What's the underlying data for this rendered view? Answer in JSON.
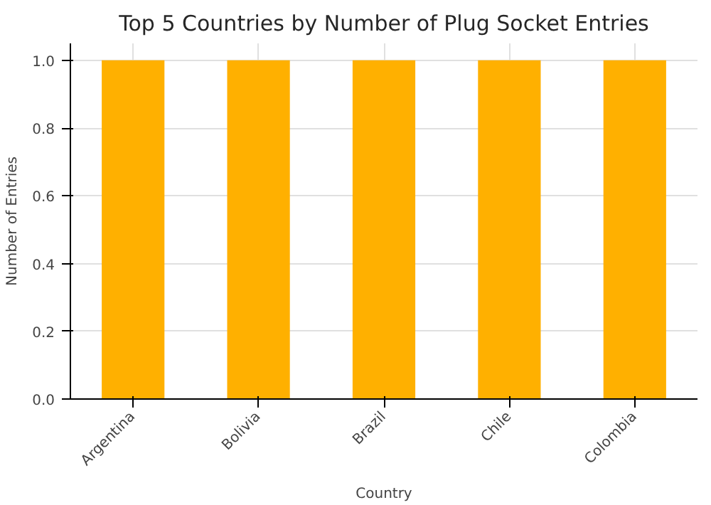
{
  "chart_data": {
    "type": "bar",
    "title": "Top 5 Countries by Number of Plug Socket Entries",
    "xlabel": "Country",
    "ylabel": "Number of Entries",
    "categories": [
      "Argentina",
      "Bolivia",
      "Brazil",
      "Chile",
      "Colombia"
    ],
    "values": [
      1,
      1,
      1,
      1,
      1
    ],
    "color": "#ffb000",
    "ylim": [
      0,
      1.05
    ],
    "yticks": [
      {
        "value": 0,
        "label": "0.0"
      },
      {
        "value": 0.2,
        "label": "0.2"
      },
      {
        "value": 0.4,
        "label": "0.4"
      },
      {
        "value": 0.6,
        "label": "0.6"
      },
      {
        "value": 0.8,
        "label": "0.8"
      },
      {
        "value": 1,
        "label": "1.0"
      }
    ],
    "grid": true
  }
}
